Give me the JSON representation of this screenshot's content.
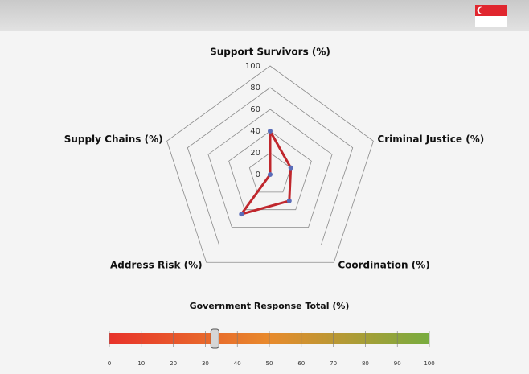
{
  "chart_data": [
    {
      "type": "radar",
      "categories": [
        "Support Survivors (%)",
        "Criminal Justice  (%)",
        "Coordination  (%)",
        "Address Risk (%)",
        "Supply Chains (%)"
      ],
      "values": [
        40,
        20,
        30,
        45,
        0
      ],
      "color": "#c0272d",
      "marker_color": "#5a6cb8",
      "ylim": [
        0,
        100
      ],
      "yticks": [
        0,
        20,
        40,
        60,
        80,
        100
      ],
      "grid": true
    },
    {
      "type": "gauge",
      "title": "Government Response Total (%)",
      "value": 33,
      "colors": [
        "#e8322a",
        "#e88a2c",
        "#78ac3f"
      ],
      "xlim": [
        0,
        100
      ],
      "xticks": [
        0,
        10,
        20,
        30,
        40,
        50,
        60,
        70,
        80,
        90,
        100
      ]
    }
  ]
}
